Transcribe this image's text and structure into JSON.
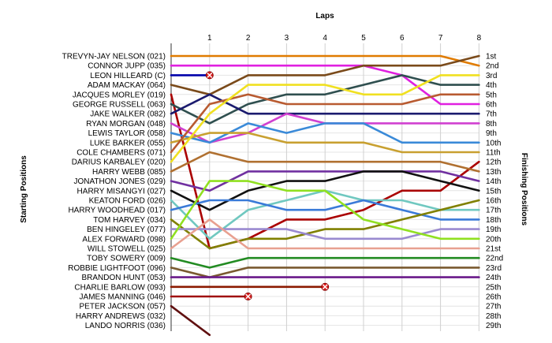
{
  "chart_data": {
    "type": "line",
    "title": "",
    "xlabel": "Laps",
    "ylabel_left": "Starting Positions",
    "ylabel_right": "Finishing Positions",
    "x_ticks": [
      "1",
      "2",
      "3",
      "4",
      "5",
      "6",
      "7",
      "8"
    ],
    "x_range": [
      0,
      8
    ],
    "y_range": [
      1,
      29
    ],
    "grid": true,
    "legend": "left labels (starting order) and right labels (finishing positions)",
    "starting_labels": [
      "TREVYN-JAY NELSON (021)",
      "CONNOR JUPP (035)",
      "LEON HILLEARD (C)",
      "ADAM MACKAY (064)",
      "JACQUES MORLEY (019)",
      "GEORGE RUSSELL (063)",
      "JAKE WALKER (082)",
      "RYAN MORGAN (048)",
      "LEWIS TAYLOR (058)",
      "LUKE BARKER (055)",
      "COLE CHAMBERS (071)",
      "DARIUS KARBALEY (020)",
      "HARRY WEBB (085)",
      "JONATHON JONES (029)",
      "HARRY MISANGYI (027)",
      "KEATON FORD (026)",
      "HARRY WOODHEAD (017)",
      "TOM HARVEY (034)",
      "BEN HINGELEY (077)",
      "ALEX FORWARD (098)",
      "WILL STOWELL (025)",
      "TOBY SOWERY (009)",
      "ROBBIE LIGHTFOOT (096)",
      "BRANDON HUNT (053)",
      "CHARLIE BARLOW (093)",
      "JAMES MANNING (046)",
      "PETER JACKSON (057)",
      "HARRY ANDREWS (032)",
      "LANDO NORRIS (036)"
    ],
    "finishing_labels": [
      "1st",
      "2nd",
      "3rd",
      "4th",
      "5th",
      "6th",
      "7th",
      "8th",
      "9th",
      "10th",
      "11th",
      "12th",
      "13th",
      "14th",
      "15th",
      "16th",
      "17th",
      "18th",
      "19th",
      "20th",
      "21st",
      "22nd",
      "23rd",
      "24th",
      "25th",
      "26th",
      "27th",
      "28th",
      "29th"
    ],
    "series": [
      {
        "color": "#e07b00",
        "values": [
          1,
          1,
          1,
          1,
          1,
          1,
          1,
          2
        ]
      },
      {
        "color": "#e020e0",
        "values": [
          2,
          2,
          2,
          2,
          2,
          3,
          6,
          6
        ]
      },
      {
        "color": "#0000aa",
        "values": [
          3
        ],
        "retired_after_lap": 1
      },
      {
        "color": "#7a4a1a",
        "values": [
          5,
          3,
          3,
          3,
          2,
          2,
          2,
          1
        ]
      },
      {
        "color": "#aa0000",
        "values": [
          21,
          20,
          18,
          18,
          17,
          15,
          15,
          12
        ]
      },
      {
        "color": "#2f4f4f",
        "values": [
          8,
          6,
          5,
          5,
          4,
          3,
          4,
          4
        ]
      },
      {
        "color": "#1a1a6e",
        "values": [
          5,
          7,
          7,
          7,
          7,
          7,
          7,
          7
        ]
      },
      {
        "color": "#d040d0",
        "values": [
          10,
          9,
          7,
          8,
          8,
          8,
          8,
          8
        ]
      },
      {
        "color": "#3a8ad8",
        "values": [
          10,
          8,
          9,
          8,
          8,
          10,
          10,
          10
        ]
      },
      {
        "color": "#c8a030",
        "values": [
          9,
          9,
          10,
          10,
          10,
          11,
          11,
          11
        ]
      },
      {
        "color": "#b85a30",
        "values": [
          6,
          5,
          6,
          6,
          6,
          6,
          5,
          5
        ]
      },
      {
        "color": "#f0e020",
        "values": [
          7,
          4,
          4,
          4,
          5,
          5,
          3,
          3
        ]
      },
      {
        "color": "#b07030",
        "values": [
          11,
          12,
          12,
          12,
          12,
          12,
          12,
          13
        ]
      },
      {
        "color": "#7030a0",
        "values": [
          15,
          13,
          13,
          13,
          13,
          13,
          13,
          14
        ]
      },
      {
        "color": "#111111",
        "values": [
          17,
          15,
          14,
          14,
          13,
          13,
          14,
          15
        ]
      },
      {
        "color": "#70c8c0",
        "values": [
          20,
          17,
          16,
          15,
          16,
          16,
          17,
          17
        ]
      },
      {
        "color": "#3a7ad8",
        "values": [
          16,
          16,
          17,
          17,
          16,
          17,
          18,
          18
        ]
      },
      {
        "color": "#808000",
        "values": [
          21,
          20,
          20,
          19,
          19,
          18,
          17,
          16
        ]
      },
      {
        "color": "#9a8ad0",
        "values": [
          19,
          19,
          19,
          20,
          20,
          20,
          19,
          19
        ]
      },
      {
        "color": "#90e020",
        "values": [
          14,
          14,
          15,
          15,
          18,
          19,
          20,
          20
        ]
      },
      {
        "color": "#e8a090",
        "values": [
          18,
          21,
          21,
          21,
          21,
          21,
          21,
          21
        ]
      },
      {
        "color": "#228b22",
        "values": [
          23,
          22,
          22,
          22,
          22,
          22,
          22,
          22
        ]
      },
      {
        "color": "#7a5a30",
        "values": [
          24,
          23,
          23,
          23,
          23,
          23,
          23,
          23
        ]
      },
      {
        "color": "#6a1a8a",
        "values": [
          24,
          24,
          24,
          24,
          24,
          24,
          24,
          24
        ]
      },
      {
        "color": "#8b1a00",
        "values": [
          25,
          25,
          25,
          25
        ],
        "retired_after_lap": 4
      },
      {
        "color": "#a01010",
        "values": [
          26,
          26
        ],
        "retired_after_lap": 2
      },
      {
        "color": "#601010",
        "values": [
          30
        ]
      }
    ]
  }
}
